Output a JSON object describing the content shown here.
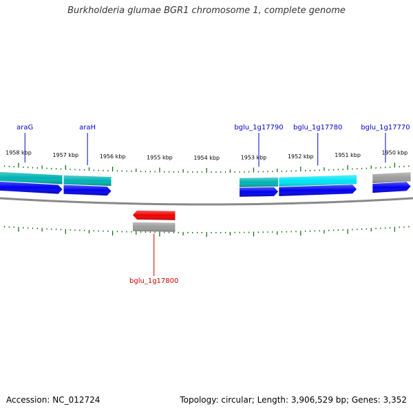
{
  "title": "Burkholderia glumae BGR1 chromosome 1, complete genome",
  "ticks_kbp": [
    {
      "kbp": 1958,
      "label": "1958 kbp"
    },
    {
      "kbp": 1957,
      "label": "1957 kbp"
    },
    {
      "kbp": 1956,
      "label": "1956 kbp"
    },
    {
      "kbp": 1955,
      "label": "1955 kbp"
    },
    {
      "kbp": 1954,
      "label": "1954 kbp"
    },
    {
      "kbp": 1953,
      "label": "1953 kbp"
    },
    {
      "kbp": 1952,
      "label": "1952 kbp"
    },
    {
      "kbp": 1951,
      "label": "1951 kbp"
    },
    {
      "kbp": 1950,
      "label": "1950 kbp"
    }
  ],
  "genes": [
    {
      "name": "araG",
      "strand": "+",
      "start_kbp": 1958.66,
      "end_kbp": 1957.07,
      "cog_color": "#00b3b3"
    },
    {
      "name": "araH",
      "strand": "+",
      "start_kbp": 1957.04,
      "end_kbp": 1956.03,
      "cog_color": "#00b3b3"
    },
    {
      "name": "bglu_1g17790",
      "strand": "+",
      "start_kbp": 1953.3,
      "end_kbp": 1952.48,
      "cog_color": "#00b3b3"
    },
    {
      "name": "bglu_1g17780",
      "strand": "+",
      "start_kbp": 1952.46,
      "end_kbp": 1950.81,
      "cog_color": "#00e5f5"
    },
    {
      "name": "bglu_1g17770",
      "strand": "+",
      "start_kbp": 1950.47,
      "end_kbp": 1949.66,
      "cog_color": "#9c9c9c"
    },
    {
      "name": "bglu_1g17800",
      "strand": "-",
      "start_kbp": 1955.57,
      "end_kbp": 1954.67,
      "cog_color": "#9c9c9c"
    }
  ],
  "colors": {
    "forward_gene": "#0000ee",
    "reverse_gene": "#ee0000",
    "forward_label": "#0000cc",
    "reverse_label": "#cc0000",
    "tick": "#006600",
    "backbone": "#888888"
  },
  "accession": "Accession: NC_012724",
  "topology": "Topology: circular; Length: 3,906,529 bp; Genes: 3,352"
}
